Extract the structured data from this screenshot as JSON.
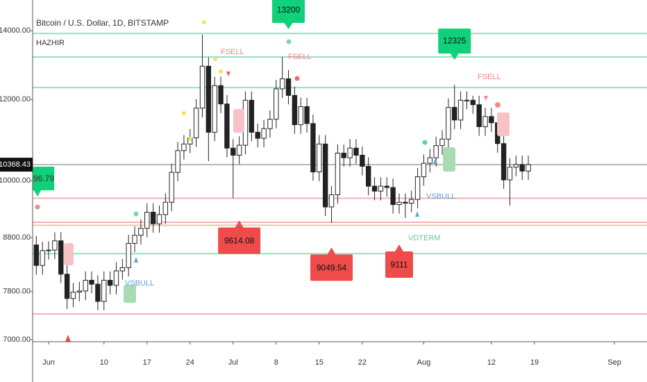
{
  "chart_data": {
    "type": "candlestick",
    "title": "Bitcoin / U.S. Dollar, 1D, BITSTAMP",
    "subtitle": "HAZHIR",
    "log_scale": true,
    "up_color": "#ffffff",
    "down_color": "#222222",
    "x": [
      -2,
      -1,
      0,
      1,
      2,
      3,
      4,
      5,
      6,
      7,
      8,
      9,
      10,
      11,
      12,
      13,
      14,
      15,
      16,
      17,
      18,
      19,
      20,
      21,
      22,
      23,
      24,
      25,
      26,
      27,
      28,
      29,
      30,
      31,
      32,
      33,
      34,
      35,
      36,
      37,
      38,
      39,
      40,
      41,
      42,
      43,
      44,
      45,
      46,
      47,
      48,
      49,
      50,
      51,
      52,
      53,
      54,
      55,
      56,
      57,
      58,
      59,
      60,
      61,
      62,
      63,
      64,
      65,
      66,
      67,
      68,
      69,
      70,
      71,
      72,
      73,
      74,
      75,
      76,
      77,
      78
    ],
    "open": [
      8660,
      8270,
      8550,
      8560,
      8740,
      8110,
      7680,
      7790,
      7810,
      8000,
      7930,
      7630,
      8000,
      7910,
      8170,
      8230,
      8690,
      8850,
      8990,
      9320,
      9080,
      9270,
      9530,
      10190,
      10700,
      10860,
      11010,
      11770,
      12930,
      11150,
      12380,
      11880,
      10760,
      10590,
      10830,
      11980,
      11150,
      11000,
      11240,
      11480,
      12290,
      12570,
      12110,
      11340,
      11810,
      11370,
      10200,
      10860,
      9430,
      9690,
      10640,
      10530,
      10760,
      10590,
      10330,
      9880,
      9770,
      9880,
      9850,
      9480,
      9530,
      9510,
      9590,
      10090,
      10400,
      10530,
      10820,
      10980,
      11790,
      11460,
      11980,
      11980,
      11860,
      11290,
      11550,
      11390,
      10870,
      10020,
      10310,
      10370,
      10220
    ],
    "high": [
      8840,
      8720,
      8730,
      8910,
      8910,
      8270,
      7950,
      7970,
      8160,
      8160,
      8090,
      8160,
      8160,
      8330,
      8390,
      8860,
      9030,
      9170,
      9510,
      9510,
      9460,
      9720,
      10390,
      10910,
      11080,
      11230,
      12010,
      13880,
      13190,
      12630,
      12630,
      12120,
      10980,
      11050,
      12220,
      12220,
      11370,
      11460,
      11710,
      12540,
      13200,
      12820,
      12350,
      12050,
      12050,
      11600,
      11080,
      11080,
      9880,
      10850,
      10850,
      10980,
      10980,
      10800,
      10540,
      10080,
      10080,
      10080,
      10050,
      9720,
      9720,
      9780,
      10290,
      10610,
      10740,
      11040,
      11200,
      12030,
      12400,
      12220,
      12220,
      12100,
      12100,
      11780,
      11780,
      11620,
      11090,
      10520,
      10580,
      10580,
      10580
    ],
    "low": [
      8100,
      8100,
      8380,
      8390,
      7950,
      7500,
      7530,
      7630,
      7650,
      7770,
      7480,
      7480,
      7750,
      7750,
      8010,
      8070,
      8520,
      8670,
      8810,
      8900,
      8900,
      9080,
      9340,
      9990,
      10490,
      10640,
      10790,
      11530,
      10450,
      10930,
      11640,
      10540,
      9620,
      10380,
      10610,
      10930,
      10780,
      10780,
      11020,
      11250,
      12040,
      11870,
      11110,
      11110,
      11140,
      10000,
      9990,
      9240,
      9100,
      9500,
      10320,
      10320,
      10380,
      10120,
      9680,
      9570,
      9570,
      9650,
      9290,
      9290,
      9200,
      9320,
      9400,
      9890,
      10190,
      10320,
      10600,
      10760,
      11230,
      11230,
      11740,
      11620,
      11060,
      11060,
      11160,
      10650,
      9820,
      9460,
      10100,
      10020,
      10020
    ],
    "close": [
      8270,
      8550,
      8560,
      8740,
      8110,
      7680,
      7790,
      7810,
      8000,
      7930,
      7630,
      8000,
      7910,
      8170,
      8230,
      8690,
      8850,
      8990,
      9320,
      9080,
      9270,
      9530,
      10190,
      10700,
      10860,
      11010,
      11770,
      12930,
      11150,
      12380,
      11880,
      10760,
      10590,
      10830,
      11980,
      11150,
      11000,
      11240,
      11480,
      12290,
      12570,
      12110,
      11340,
      11810,
      11370,
      10200,
      10860,
      9430,
      9690,
      10640,
      10530,
      10760,
      10590,
      10330,
      9880,
      9770,
      9880,
      9850,
      9480,
      9530,
      9510,
      9590,
      10090,
      10400,
      10530,
      10820,
      10980,
      11790,
      11460,
      11980,
      11980,
      11860,
      11290,
      11550,
      11390,
      10870,
      10020,
      10310,
      10370,
      10220,
      10368.43
    ],
    "xlim": [
      -2.6,
      97.3
    ],
    "xticks": [
      {
        "value": 0,
        "label": "Jun"
      },
      {
        "value": 9,
        "label": "10"
      },
      {
        "value": 16,
        "label": "17"
      },
      {
        "value": 23,
        "label": "24"
      },
      {
        "value": 30,
        "label": "Jul"
      },
      {
        "value": 37,
        "label": "8"
      },
      {
        "value": 44,
        "label": "15"
      },
      {
        "value": 51,
        "label": "22"
      },
      {
        "value": 61,
        "label": "Aug"
      },
      {
        "value": 72,
        "label": "12"
      },
      {
        "value": 79,
        "label": "19"
      },
      {
        "value": 92,
        "label": "Sep"
      }
    ],
    "ylim": [
      6970,
      15000
    ],
    "yticks": [
      {
        "value": 14000,
        "label": "14000.00"
      },
      {
        "value": 12000,
        "label": "12000.00"
      },
      {
        "value": 10000,
        "label": "10000.00"
      },
      {
        "value": 8800,
        "label": "8800.00"
      },
      {
        "value": 7800,
        "label": "7800.00"
      },
      {
        "value": 7000,
        "label": "7000.00"
      }
    ],
    "levels": [
      {
        "price": 13913,
        "color": "#8fe3c0"
      },
      {
        "price": 13200,
        "color": "#8fe3c0"
      },
      {
        "price": 12325,
        "color": "#8fe3c0"
      },
      {
        "price": 10368.43,
        "color": "#b8b8b8"
      },
      {
        "price": 9614.08,
        "color": "#f4b0b4"
      },
      {
        "price": 9111,
        "color": "#f4b0b4"
      },
      {
        "price": 9049.54,
        "color": "#e8c8b0"
      },
      {
        "price": 8491,
        "color": "#8fe3c0"
      },
      {
        "price": 7416,
        "color": "#f4b0b4"
      }
    ],
    "callouts": [
      {
        "label": "13200",
        "value": 13200,
        "day": 39,
        "color": "#0fd17a",
        "side": "above"
      },
      {
        "label": "12325",
        "value": 12325,
        "day": 66,
        "color": "#0fd17a",
        "side": "above"
      },
      {
        "label": "9614.08",
        "value": 9614.08,
        "day": 31,
        "color": "#ef4b4b",
        "side": "below"
      },
      {
        "label": "9049.54",
        "value": 9049.54,
        "day": 46,
        "color": "#ef4b4b",
        "side": "below"
      },
      {
        "label": "9111",
        "value": 9111,
        "day": 57,
        "color": "#ef4b4b",
        "side": "below"
      }
    ],
    "edge_label": "96.79",
    "signals": [
      "FSELL",
      "FSELL",
      "FSELL",
      "VSBULL",
      "VSBULL",
      "VDTERM"
    ]
  }
}
